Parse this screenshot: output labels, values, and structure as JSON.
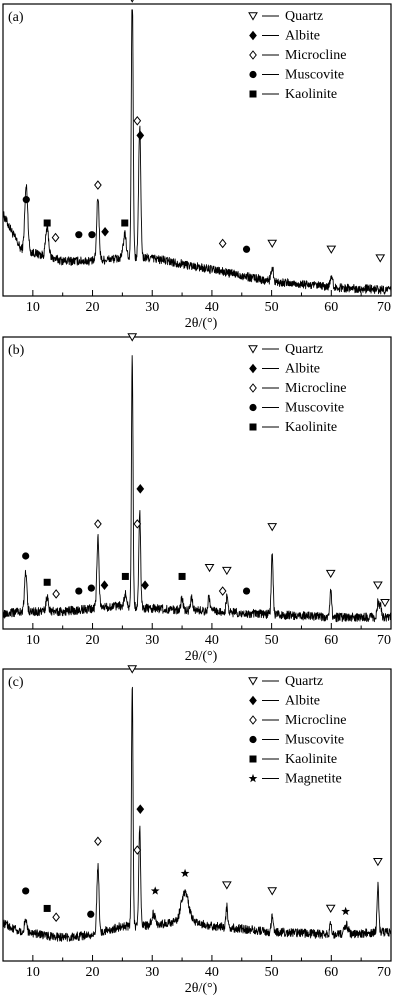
{
  "chart_data": [
    {
      "type": "line",
      "panel_label": "(a)",
      "xlabel": "2θ/(°)",
      "xlim": [
        5,
        70
      ],
      "xticks": [
        10,
        20,
        30,
        40,
        50,
        60,
        70
      ],
      "legend": [
        "Quartz",
        "Albite",
        "Microcline",
        "Muscovite",
        "Kaolinite"
      ],
      "legend_placement": "top-right",
      "markers": {
        "Quartz": "triangle-open",
        "Albite": "diamond-filled",
        "Microcline": "diamond-open",
        "Muscovite": "circle-filled",
        "Kaolinite": "square-filled"
      },
      "baseline": {
        "x": [
          5,
          8,
          15,
          20,
          25,
          30,
          40,
          50,
          60,
          70
        ],
        "y": [
          0.28,
          0.16,
          0.12,
          0.12,
          0.13,
          0.13,
          0.09,
          0.05,
          0.03,
          0.02
        ]
      },
      "peaks": [
        {
          "x": 8.9,
          "h": 0.22,
          "w": 0.25
        },
        {
          "x": 12.4,
          "h": 0.1,
          "w": 0.25
        },
        {
          "x": 20.9,
          "h": 0.22,
          "w": 0.2
        },
        {
          "x": 25.4,
          "h": 0.08,
          "w": 0.25
        },
        {
          "x": 26.65,
          "h": 0.94,
          "w": 0.15
        },
        {
          "x": 27.9,
          "h": 0.45,
          "w": 0.18
        },
        {
          "x": 50.1,
          "h": 0.05,
          "w": 0.2
        },
        {
          "x": 60.0,
          "h": 0.04,
          "w": 0.2
        }
      ],
      "annotations": [
        {
          "x": 8.9,
          "y": 0.33,
          "phase": "Muscovite"
        },
        {
          "x": 12.4,
          "y": 0.25,
          "phase": "Kaolinite"
        },
        {
          "x": 13.8,
          "y": 0.2,
          "phase": "Microcline"
        },
        {
          "x": 17.7,
          "y": 0.21,
          "phase": "Muscovite"
        },
        {
          "x": 19.9,
          "y": 0.21,
          "phase": "Muscovite"
        },
        {
          "x": 20.9,
          "y": 0.38,
          "phase": "Microcline"
        },
        {
          "x": 22.1,
          "y": 0.22,
          "phase": "Albite"
        },
        {
          "x": 25.4,
          "y": 0.25,
          "phase": "Kaolinite"
        },
        {
          "x": 26.65,
          "y": 1.02,
          "phase": "Quartz"
        },
        {
          "x": 27.5,
          "y": 0.6,
          "phase": "Microcline"
        },
        {
          "x": 28.0,
          "y": 0.55,
          "phase": "Albite"
        },
        {
          "x": 41.8,
          "y": 0.18,
          "phase": "Microcline"
        },
        {
          "x": 45.8,
          "y": 0.16,
          "phase": "Muscovite"
        },
        {
          "x": 50.1,
          "y": 0.18,
          "phase": "Quartz"
        },
        {
          "x": 60.0,
          "y": 0.16,
          "phase": "Quartz"
        },
        {
          "x": 68.2,
          "y": 0.13,
          "phase": "Quartz"
        }
      ]
    },
    {
      "type": "line",
      "panel_label": "(b)",
      "xlabel": "2θ/(°)",
      "xlim": [
        5,
        70
      ],
      "xticks": [
        10,
        20,
        30,
        40,
        50,
        60,
        70
      ],
      "legend": [
        "Quartz",
        "Albite",
        "Microcline",
        "Muscovite",
        "Kaolinite"
      ],
      "legend_placement": "top-right",
      "markers": {
        "Quartz": "triangle-open",
        "Albite": "diamond-filled",
        "Microcline": "diamond-open",
        "Muscovite": "circle-filled",
        "Kaolinite": "square-filled"
      },
      "baseline": {
        "x": [
          5,
          8,
          15,
          20,
          25,
          30,
          40,
          50,
          60,
          70
        ],
        "y": [
          0.05,
          0.06,
          0.06,
          0.07,
          0.08,
          0.07,
          0.06,
          0.05,
          0.04,
          0.04
        ]
      },
      "peaks": [
        {
          "x": 8.8,
          "h": 0.13,
          "w": 0.2
        },
        {
          "x": 12.4,
          "h": 0.05,
          "w": 0.2
        },
        {
          "x": 20.9,
          "h": 0.24,
          "w": 0.18
        },
        {
          "x": 25.5,
          "h": 0.04,
          "w": 0.2
        },
        {
          "x": 26.65,
          "h": 0.86,
          "w": 0.13
        },
        {
          "x": 27.9,
          "h": 0.33,
          "w": 0.15
        },
        {
          "x": 35.0,
          "h": 0.04,
          "w": 0.2
        },
        {
          "x": 36.6,
          "h": 0.05,
          "w": 0.15
        },
        {
          "x": 39.5,
          "h": 0.05,
          "w": 0.15
        },
        {
          "x": 42.5,
          "h": 0.05,
          "w": 0.15
        },
        {
          "x": 50.1,
          "h": 0.21,
          "w": 0.15
        },
        {
          "x": 59.9,
          "h": 0.09,
          "w": 0.15
        },
        {
          "x": 67.8,
          "h": 0.05,
          "w": 0.15
        },
        {
          "x": 68.2,
          "h": 0.05,
          "w": 0.15
        }
      ],
      "annotations": [
        {
          "x": 8.8,
          "y": 0.25,
          "phase": "Muscovite"
        },
        {
          "x": 12.4,
          "y": 0.16,
          "phase": "Kaolinite"
        },
        {
          "x": 13.9,
          "y": 0.12,
          "phase": "Microcline"
        },
        {
          "x": 17.7,
          "y": 0.13,
          "phase": "Muscovite"
        },
        {
          "x": 19.8,
          "y": 0.14,
          "phase": "Muscovite"
        },
        {
          "x": 20.9,
          "y": 0.36,
          "phase": "Microcline"
        },
        {
          "x": 22.0,
          "y": 0.15,
          "phase": "Albite"
        },
        {
          "x": 25.5,
          "y": 0.18,
          "phase": "Kaolinite"
        },
        {
          "x": 26.65,
          "y": 1.0,
          "phase": "Quartz"
        },
        {
          "x": 27.5,
          "y": 0.36,
          "phase": "Microcline"
        },
        {
          "x": 28.0,
          "y": 0.48,
          "phase": "Albite"
        },
        {
          "x": 28.8,
          "y": 0.15,
          "phase": "Albite"
        },
        {
          "x": 35.0,
          "y": 0.18,
          "phase": "Kaolinite"
        },
        {
          "x": 39.6,
          "y": 0.21,
          "phase": "Quartz"
        },
        {
          "x": 41.8,
          "y": 0.13,
          "phase": "Microcline"
        },
        {
          "x": 42.5,
          "y": 0.2,
          "phase": "Quartz"
        },
        {
          "x": 45.8,
          "y": 0.13,
          "phase": "Muscovite"
        },
        {
          "x": 50.1,
          "y": 0.35,
          "phase": "Quartz"
        },
        {
          "x": 59.9,
          "y": 0.19,
          "phase": "Quartz"
        },
        {
          "x": 67.8,
          "y": 0.15,
          "phase": "Quartz"
        },
        {
          "x": 69.0,
          "y": 0.09,
          "phase": "Quartz"
        }
      ]
    },
    {
      "type": "line",
      "panel_label": "(c)",
      "xlabel": "2θ/(°)",
      "xlim": [
        5,
        70
      ],
      "xticks": [
        10,
        20,
        30,
        40,
        50,
        60,
        70
      ],
      "legend": [
        "Quartz",
        "Albite",
        "Microcline",
        "Muscovite",
        "Kaolinite",
        "Magnetite"
      ],
      "legend_placement": "top-right",
      "markers": {
        "Quartz": "triangle-open",
        "Albite": "diamond-filled",
        "Microcline": "diamond-open",
        "Muscovite": "circle-filled",
        "Kaolinite": "square-filled",
        "Magnetite": "star-filled"
      },
      "baseline": {
        "x": [
          5,
          8,
          15,
          20,
          25,
          30,
          35,
          40,
          50,
          60,
          70
        ],
        "y": [
          0.13,
          0.1,
          0.08,
          0.09,
          0.12,
          0.12,
          0.14,
          0.12,
          0.1,
          0.09,
          0.1
        ]
      },
      "peaks": [
        {
          "x": 8.8,
          "h": 0.05,
          "w": 0.2
        },
        {
          "x": 20.9,
          "h": 0.23,
          "w": 0.18
        },
        {
          "x": 26.65,
          "h": 0.83,
          "w": 0.13
        },
        {
          "x": 27.9,
          "h": 0.34,
          "w": 0.15
        },
        {
          "x": 30.2,
          "h": 0.04,
          "w": 0.3
        },
        {
          "x": 35.5,
          "h": 0.1,
          "w": 0.6
        },
        {
          "x": 42.5,
          "h": 0.07,
          "w": 0.15
        },
        {
          "x": 50.1,
          "h": 0.06,
          "w": 0.15
        },
        {
          "x": 59.9,
          "h": 0.04,
          "w": 0.15
        },
        {
          "x": 62.5,
          "h": 0.03,
          "w": 0.3
        },
        {
          "x": 67.8,
          "h": 0.16,
          "w": 0.15
        }
      ],
      "annotations": [
        {
          "x": 8.8,
          "y": 0.24,
          "phase": "Muscovite"
        },
        {
          "x": 12.4,
          "y": 0.18,
          "phase": "Kaolinite"
        },
        {
          "x": 13.9,
          "y": 0.15,
          "phase": "Microcline"
        },
        {
          "x": 19.7,
          "y": 0.16,
          "phase": "Muscovite"
        },
        {
          "x": 20.9,
          "y": 0.41,
          "phase": "Microcline"
        },
        {
          "x": 26.65,
          "y": 1.0,
          "phase": "Quartz"
        },
        {
          "x": 27.5,
          "y": 0.38,
          "phase": "Microcline"
        },
        {
          "x": 28.0,
          "y": 0.52,
          "phase": "Albite"
        },
        {
          "x": 30.5,
          "y": 0.24,
          "phase": "Magnetite"
        },
        {
          "x": 35.5,
          "y": 0.3,
          "phase": "Magnetite"
        },
        {
          "x": 42.5,
          "y": 0.26,
          "phase": "Quartz"
        },
        {
          "x": 50.1,
          "y": 0.24,
          "phase": "Quartz"
        },
        {
          "x": 59.9,
          "y": 0.18,
          "phase": "Quartz"
        },
        {
          "x": 62.4,
          "y": 0.17,
          "phase": "Magnetite"
        },
        {
          "x": 67.8,
          "y": 0.34,
          "phase": "Quartz"
        }
      ]
    }
  ]
}
